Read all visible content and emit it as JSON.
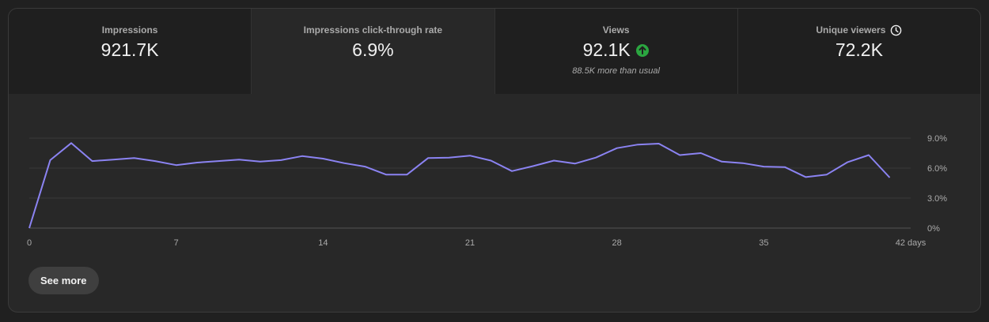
{
  "metrics": [
    {
      "label": "Impressions",
      "value": "921.7K",
      "selected": false,
      "icon": "",
      "subtext": ""
    },
    {
      "label": "Impressions click-through rate",
      "value": "6.9%",
      "selected": true,
      "icon": "",
      "subtext": ""
    },
    {
      "label": "Views",
      "value": "92.1K",
      "selected": false,
      "icon": "up-arrow-circle-icon",
      "subtext": "88.5K more than usual"
    },
    {
      "label": "Unique viewers",
      "value": "72.2K",
      "selected": false,
      "icon": "clock-icon",
      "subtext": ""
    }
  ],
  "colors": {
    "line": "#8b83f2",
    "up_badge": "#2ba640"
  },
  "chart_data": {
    "type": "line",
    "x": [
      0,
      1,
      2,
      3,
      4,
      5,
      6,
      7,
      8,
      9,
      10,
      11,
      12,
      13,
      14,
      15,
      16,
      17,
      18,
      19,
      20,
      21,
      22,
      23,
      24,
      25,
      26,
      27,
      28,
      29,
      30,
      31,
      32,
      33,
      34,
      35,
      36,
      37,
      38,
      39,
      40,
      41
    ],
    "values": [
      0.0,
      6.8,
      8.5,
      6.7,
      6.85,
      7.0,
      6.7,
      6.3,
      6.55,
      6.7,
      6.85,
      6.65,
      6.8,
      7.2,
      6.95,
      6.5,
      6.15,
      5.35,
      5.35,
      7.0,
      7.05,
      7.25,
      6.75,
      5.7,
      6.2,
      6.75,
      6.45,
      7.05,
      8.0,
      8.35,
      8.45,
      7.3,
      7.5,
      6.65,
      6.5,
      6.15,
      6.1,
      5.1,
      5.35,
      6.6,
      7.3,
      5.05
    ],
    "xlim": [
      0,
      42
    ],
    "ylim": [
      0,
      9.0
    ],
    "x_ticks": [
      0,
      7,
      14,
      21,
      28,
      35,
      42
    ],
    "x_tick_labels": [
      "0",
      "7",
      "14",
      "21",
      "28",
      "35",
      "42 days"
    ],
    "y_ticks": [
      9.0,
      6.0,
      3.0,
      0
    ],
    "y_tick_labels": [
      "9.0%",
      "6.0%",
      "3.0%",
      "0%"
    ],
    "grid": true
  },
  "actions": {
    "see_more_label": "See more"
  }
}
